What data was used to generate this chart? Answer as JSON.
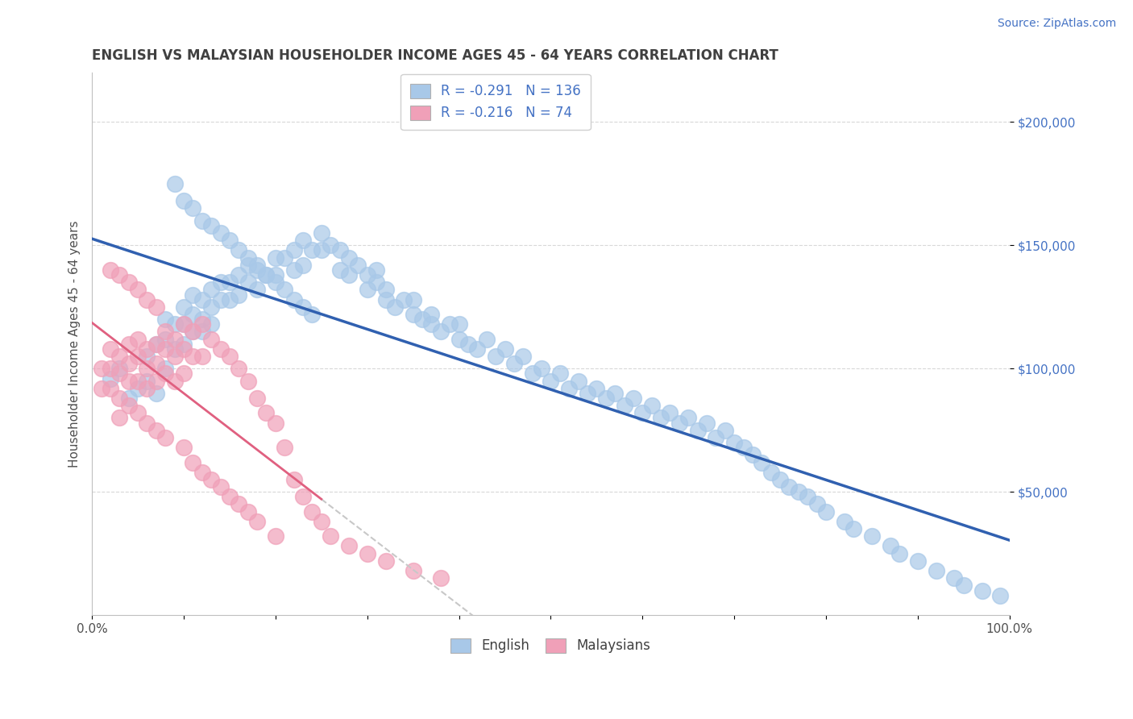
{
  "title": "ENGLISH VS MALAYSIAN HOUSEHOLDER INCOME AGES 45 - 64 YEARS CORRELATION CHART",
  "source_text": "Source: ZipAtlas.com",
  "ylabel": "Householder Income Ages 45 - 64 years",
  "yaxis_values": [
    50000,
    100000,
    150000,
    200000
  ],
  "legend_labels": [
    "English",
    "Malaysians"
  ],
  "r_english": -0.291,
  "n_english": 136,
  "r_malaysian": -0.216,
  "n_malaysian": 74,
  "english_color": "#a8c8e8",
  "malaysian_color": "#f0a0b8",
  "english_line_color": "#3060b0",
  "malaysian_line_color": "#e06080",
  "background_color": "#ffffff",
  "title_color": "#404040",
  "source_color": "#4472c4",
  "legend_text_color": "#4472c4",
  "english_scatter_x": [
    0.02,
    0.03,
    0.04,
    0.05,
    0.06,
    0.06,
    0.07,
    0.07,
    0.08,
    0.08,
    0.08,
    0.09,
    0.09,
    0.1,
    0.1,
    0.1,
    0.11,
    0.11,
    0.11,
    0.12,
    0.12,
    0.12,
    0.13,
    0.13,
    0.13,
    0.14,
    0.14,
    0.15,
    0.15,
    0.16,
    0.16,
    0.17,
    0.17,
    0.18,
    0.18,
    0.19,
    0.2,
    0.2,
    0.21,
    0.22,
    0.22,
    0.23,
    0.23,
    0.24,
    0.25,
    0.25,
    0.26,
    0.27,
    0.27,
    0.28,
    0.28,
    0.29,
    0.3,
    0.3,
    0.31,
    0.31,
    0.32,
    0.32,
    0.33,
    0.34,
    0.35,
    0.35,
    0.36,
    0.37,
    0.37,
    0.38,
    0.39,
    0.4,
    0.4,
    0.41,
    0.42,
    0.43,
    0.44,
    0.45,
    0.46,
    0.47,
    0.48,
    0.49,
    0.5,
    0.51,
    0.52,
    0.53,
    0.54,
    0.55,
    0.56,
    0.57,
    0.58,
    0.59,
    0.6,
    0.61,
    0.62,
    0.63,
    0.64,
    0.65,
    0.66,
    0.67,
    0.68,
    0.69,
    0.7,
    0.71,
    0.72,
    0.73,
    0.74,
    0.75,
    0.76,
    0.77,
    0.78,
    0.79,
    0.8,
    0.82,
    0.83,
    0.85,
    0.87,
    0.88,
    0.9,
    0.92,
    0.94,
    0.95,
    0.97,
    0.99,
    0.09,
    0.1,
    0.11,
    0.12,
    0.13,
    0.14,
    0.15,
    0.16,
    0.17,
    0.18,
    0.19,
    0.2,
    0.21,
    0.22,
    0.23,
    0.24
  ],
  "english_scatter_y": [
    96000,
    100000,
    88000,
    92000,
    105000,
    95000,
    110000,
    90000,
    120000,
    112000,
    100000,
    118000,
    108000,
    125000,
    118000,
    110000,
    130000,
    122000,
    115000,
    128000,
    120000,
    115000,
    132000,
    125000,
    118000,
    135000,
    128000,
    135000,
    128000,
    138000,
    130000,
    142000,
    135000,
    140000,
    132000,
    138000,
    145000,
    138000,
    145000,
    148000,
    140000,
    152000,
    142000,
    148000,
    155000,
    148000,
    150000,
    148000,
    140000,
    145000,
    138000,
    142000,
    138000,
    132000,
    140000,
    135000,
    132000,
    128000,
    125000,
    128000,
    122000,
    128000,
    120000,
    118000,
    122000,
    115000,
    118000,
    112000,
    118000,
    110000,
    108000,
    112000,
    105000,
    108000,
    102000,
    105000,
    98000,
    100000,
    95000,
    98000,
    92000,
    95000,
    90000,
    92000,
    88000,
    90000,
    85000,
    88000,
    82000,
    85000,
    80000,
    82000,
    78000,
    80000,
    75000,
    78000,
    72000,
    75000,
    70000,
    68000,
    65000,
    62000,
    58000,
    55000,
    52000,
    50000,
    48000,
    45000,
    42000,
    38000,
    35000,
    32000,
    28000,
    25000,
    22000,
    18000,
    15000,
    12000,
    10000,
    8000,
    175000,
    168000,
    165000,
    160000,
    158000,
    155000,
    152000,
    148000,
    145000,
    142000,
    138000,
    135000,
    132000,
    128000,
    125000,
    122000
  ],
  "malaysian_scatter_x": [
    0.01,
    0.01,
    0.02,
    0.02,
    0.02,
    0.03,
    0.03,
    0.03,
    0.03,
    0.04,
    0.04,
    0.04,
    0.04,
    0.05,
    0.05,
    0.05,
    0.05,
    0.06,
    0.06,
    0.06,
    0.06,
    0.07,
    0.07,
    0.07,
    0.07,
    0.08,
    0.08,
    0.08,
    0.08,
    0.09,
    0.09,
    0.09,
    0.1,
    0.1,
    0.1,
    0.1,
    0.11,
    0.11,
    0.11,
    0.12,
    0.12,
    0.12,
    0.13,
    0.13,
    0.14,
    0.14,
    0.15,
    0.15,
    0.16,
    0.16,
    0.17,
    0.17,
    0.18,
    0.18,
    0.19,
    0.2,
    0.2,
    0.21,
    0.22,
    0.23,
    0.24,
    0.25,
    0.26,
    0.28,
    0.3,
    0.32,
    0.35,
    0.38,
    0.02,
    0.03,
    0.04,
    0.05,
    0.06,
    0.07
  ],
  "malaysian_scatter_y": [
    100000,
    92000,
    108000,
    100000,
    92000,
    105000,
    98000,
    88000,
    80000,
    110000,
    102000,
    95000,
    85000,
    112000,
    105000,
    95000,
    82000,
    108000,
    100000,
    92000,
    78000,
    110000,
    102000,
    95000,
    75000,
    115000,
    108000,
    98000,
    72000,
    112000,
    105000,
    95000,
    118000,
    108000,
    98000,
    68000,
    115000,
    105000,
    62000,
    118000,
    105000,
    58000,
    112000,
    55000,
    108000,
    52000,
    105000,
    48000,
    100000,
    45000,
    95000,
    42000,
    88000,
    38000,
    82000,
    78000,
    32000,
    68000,
    55000,
    48000,
    42000,
    38000,
    32000,
    28000,
    25000,
    22000,
    18000,
    15000,
    140000,
    138000,
    135000,
    132000,
    128000,
    125000
  ]
}
